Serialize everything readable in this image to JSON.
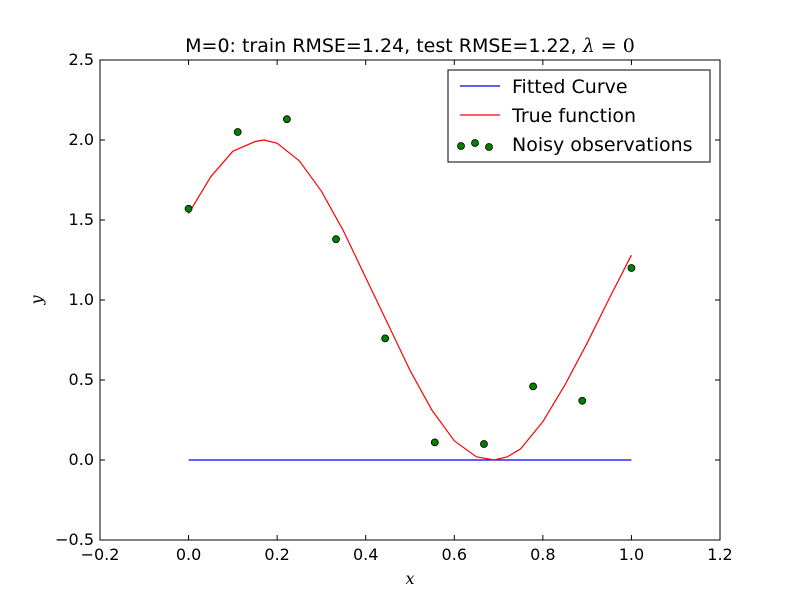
{
  "chart_data": {
    "type": "line",
    "title": "M=0: train RMSE=1.24, test RMSE=1.22, λ=0",
    "title_prefix": "M=0: train RMSE=1.24, test RMSE=1.22, ",
    "title_lambda": "λ",
    "title_lambda_value": " = 0",
    "xlabel": "x",
    "ylabel": "y",
    "xlim": [
      -0.2,
      1.2
    ],
    "ylim": [
      -0.5,
      2.5
    ],
    "xticks": [
      -0.2,
      0.0,
      0.2,
      0.4,
      0.6,
      0.8,
      1.0,
      1.2
    ],
    "xtick_labels": [
      "−0.2",
      "0.0",
      "0.2",
      "0.4",
      "0.6",
      "0.8",
      "1.0",
      "1.2"
    ],
    "yticks": [
      -0.5,
      0.0,
      0.5,
      1.0,
      1.5,
      2.0,
      2.5
    ],
    "ytick_labels": [
      "−0.5",
      "0.0",
      "0.5",
      "1.0",
      "1.5",
      "2.0",
      "2.5"
    ],
    "grid": false,
    "legend_position": "top-right",
    "series": [
      {
        "name": "Fitted Curve",
        "kind": "line",
        "color": "#0000ff",
        "x": [
          0.0,
          1.0
        ],
        "y": [
          0.0,
          0.0
        ]
      },
      {
        "name": "True function",
        "kind": "line",
        "color": "#ff0000",
        "x": [
          0.0,
          0.05,
          0.1,
          0.15,
          0.17,
          0.2,
          0.25,
          0.3,
          0.35,
          0.4,
          0.45,
          0.5,
          0.55,
          0.6,
          0.65,
          0.69,
          0.72,
          0.75,
          0.8,
          0.85,
          0.9,
          0.95,
          1.0
        ],
        "y": [
          1.54,
          1.77,
          1.93,
          1.99,
          2.0,
          1.98,
          1.87,
          1.68,
          1.43,
          1.14,
          0.85,
          0.56,
          0.31,
          0.12,
          0.02,
          0.0,
          0.02,
          0.07,
          0.24,
          0.47,
          0.73,
          1.01,
          1.28
        ]
      },
      {
        "name": "Noisy observations",
        "kind": "scatter",
        "color": "#007f00",
        "x": [
          0.0,
          0.111,
          0.222,
          0.333,
          0.444,
          0.556,
          0.667,
          0.778,
          0.889,
          1.0
        ],
        "y": [
          1.57,
          2.05,
          2.13,
          1.38,
          0.76,
          0.11,
          0.1,
          0.46,
          0.37,
          1.2
        ]
      }
    ]
  }
}
